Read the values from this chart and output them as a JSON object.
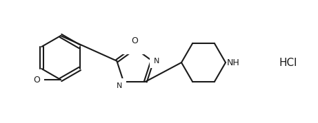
{
  "background_color": "#ffffff",
  "line_color": "#1a1a1a",
  "label_color": "#1a1a1a",
  "hcl_text": "HCl",
  "nh_text": "NH",
  "o_text": "O",
  "n_text": "N",
  "o_methoxy_text": "O",
  "figsize": [
    4.61,
    1.79
  ],
  "dpi": 100
}
